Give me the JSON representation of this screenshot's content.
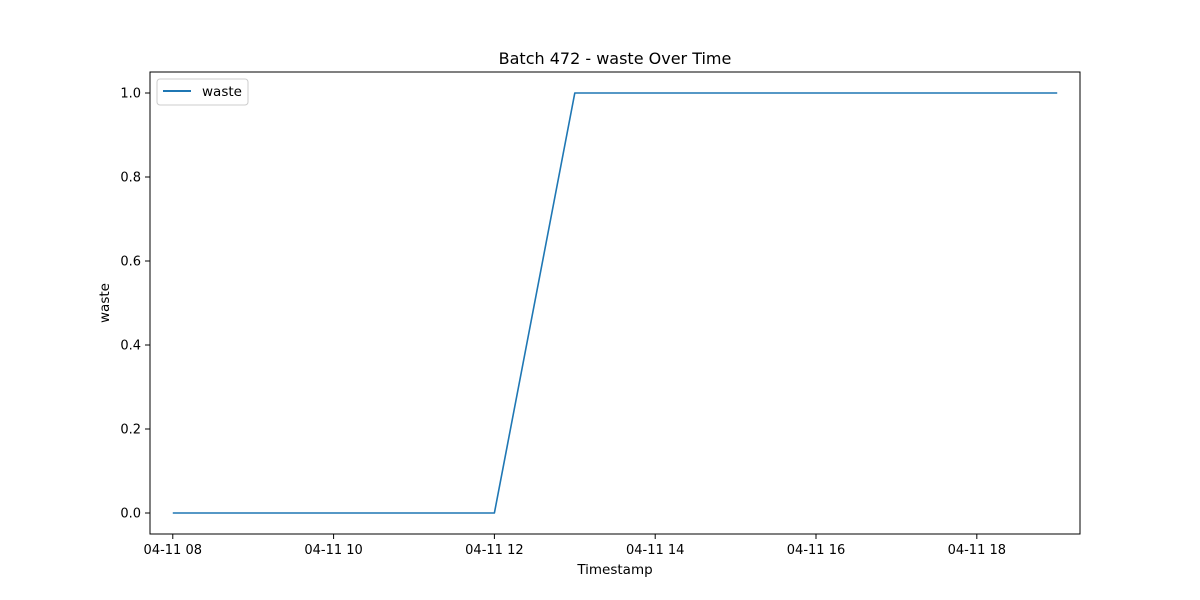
{
  "chart_data": {
    "type": "line",
    "title": "Batch 472 - waste Over Time",
    "xlabel": "Timestamp",
    "ylabel": "waste",
    "x_ticks": [
      "04-11 08",
      "04-11 10",
      "04-11 12",
      "04-11 14",
      "04-11 16",
      "04-11 18"
    ],
    "y_ticks": [
      "0.0",
      "0.2",
      "0.4",
      "0.6",
      "0.8",
      "1.0"
    ],
    "xlim": [
      "04-11 07:43",
      "04-11 19:17"
    ],
    "ylim": [
      -0.05,
      1.05
    ],
    "legend_position": "top-left",
    "grid": false,
    "series": [
      {
        "name": "waste",
        "color": "#1f77b4",
        "x": [
          "04-11 08:00",
          "04-11 09:00",
          "04-11 10:00",
          "04-11 11:00",
          "04-11 12:00",
          "04-11 13:00",
          "04-11 14:00",
          "04-11 15:00",
          "04-11 16:00",
          "04-11 17:00",
          "04-11 18:00",
          "04-11 19:00"
        ],
        "values": [
          0,
          0,
          0,
          0,
          0,
          1,
          1,
          1,
          1,
          1,
          1,
          1
        ]
      }
    ]
  }
}
